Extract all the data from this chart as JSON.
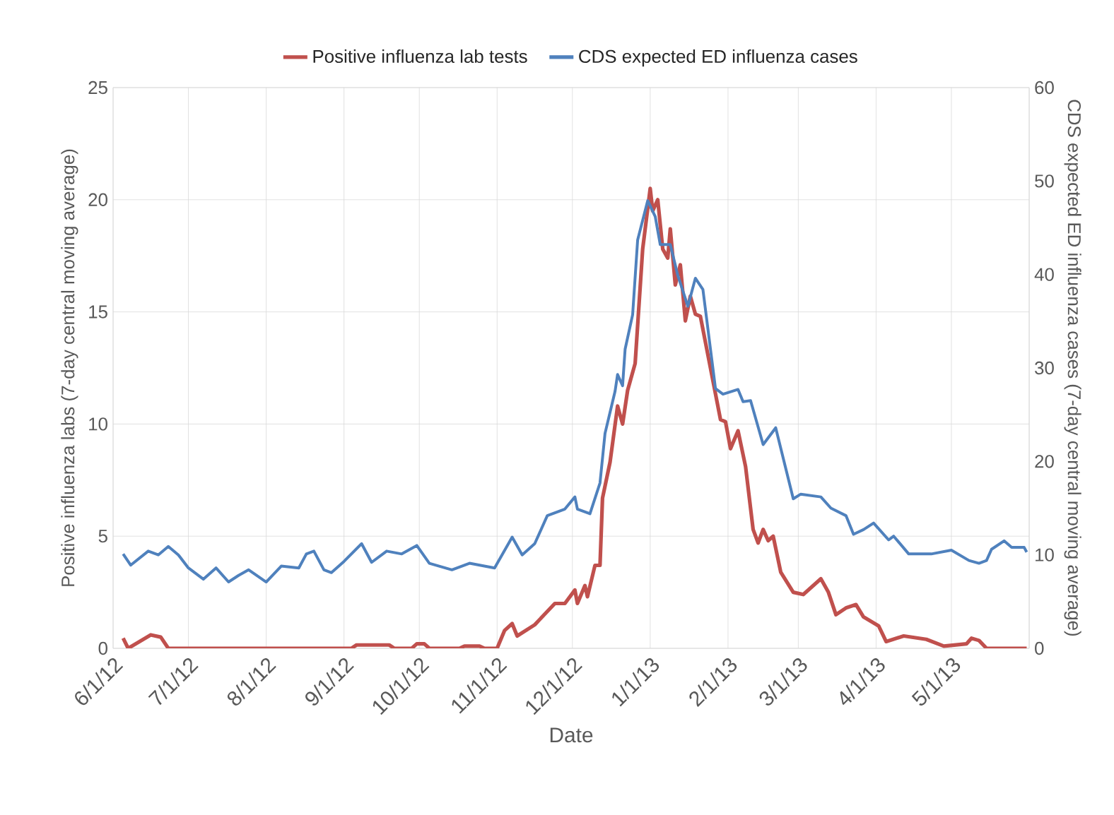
{
  "chart_data": {
    "type": "line",
    "xlabel": "Date",
    "ylabel": "Positive influenza labs (7-day central moving average)",
    "y2label": "CDS expected ED influenza cases (7-day central moving average)",
    "xlim": [
      "2012-06-01",
      "2013-06-01"
    ],
    "xticks": [
      {
        "value": "2012-06-01",
        "label": "6/1/12"
      },
      {
        "value": "2012-07-01",
        "label": "7/1/12"
      },
      {
        "value": "2012-08-01",
        "label": "8/1/12"
      },
      {
        "value": "2012-09-01",
        "label": "9/1/12"
      },
      {
        "value": "2012-10-01",
        "label": "10/1/12"
      },
      {
        "value": "2012-11-01",
        "label": "11/1/12"
      },
      {
        "value": "2012-12-01",
        "label": "12/1/12"
      },
      {
        "value": "2013-01-01",
        "label": "1/1/13"
      },
      {
        "value": "2013-02-01",
        "label": "2/1/13"
      },
      {
        "value": "2013-03-01",
        "label": "3/1/13"
      },
      {
        "value": "2013-04-01",
        "label": "4/1/13"
      },
      {
        "value": "2013-05-01",
        "label": "5/1/13"
      },
      {
        "value": "2013-06-01",
        "label": null
      }
    ],
    "ylim": [
      0,
      25
    ],
    "yticks": [
      0,
      5,
      10,
      15,
      20,
      25
    ],
    "y2lim": [
      0,
      60
    ],
    "y2ticks": [
      0,
      10,
      20,
      30,
      40,
      50,
      60
    ],
    "grid": true,
    "legend": "top",
    "series": [
      {
        "name": "Positive influenza lab tests",
        "color": "#c0504d",
        "x": [
          "2012-06-05",
          "2012-06-07",
          "2012-06-16",
          "2012-06-20",
          "2012-06-23",
          "2012-09-04",
          "2012-09-06",
          "2012-09-19",
          "2012-09-21",
          "2012-09-28",
          "2012-09-30",
          "2012-10-03",
          "2012-10-05",
          "2012-10-17",
          "2012-10-19",
          "2012-10-25",
          "2012-10-27",
          "2012-11-01",
          "2012-11-04",
          "2012-11-07",
          "2012-11-09",
          "2012-11-16",
          "2012-11-24",
          "2012-11-28",
          "2012-12-02",
          "2012-12-03",
          "2012-12-06",
          "2012-12-07",
          "2012-12-10",
          "2012-12-12",
          "2012-12-13",
          "2012-12-16",
          "2012-12-19",
          "2012-12-21",
          "2012-12-23",
          "2012-12-26",
          "2012-12-29",
          "2013-01-01",
          "2013-01-02",
          "2013-01-04",
          "2013-01-06",
          "2013-01-08",
          "2013-01-09",
          "2013-01-11",
          "2013-01-13",
          "2013-01-15",
          "2013-01-17",
          "2013-01-19",
          "2013-01-21",
          "2013-01-29",
          "2013-01-31",
          "2013-02-02",
          "2013-02-05",
          "2013-02-08",
          "2013-02-11",
          "2013-02-13",
          "2013-02-15",
          "2013-02-17",
          "2013-02-19",
          "2013-02-22",
          "2013-02-27",
          "2013-03-03",
          "2013-03-10",
          "2013-03-13",
          "2013-03-16",
          "2013-03-20",
          "2013-03-24",
          "2013-03-27",
          "2013-04-02",
          "2013-04-05",
          "2013-04-12",
          "2013-04-21",
          "2013-04-28",
          "2013-05-07",
          "2013-05-09",
          "2013-05-12",
          "2013-05-15",
          "2013-05-31"
        ],
        "values": [
          0.45,
          0,
          0.6,
          0.5,
          0,
          0,
          0.15,
          0.15,
          0,
          0,
          0.2,
          0.2,
          0,
          0,
          0.1,
          0.1,
          0,
          0,
          0.8,
          1.1,
          0.55,
          1.05,
          2.0,
          2.0,
          2.6,
          2.0,
          2.8,
          2.3,
          3.7,
          3.7,
          6.7,
          8.3,
          10.8,
          10.0,
          11.5,
          12.7,
          17.8,
          20.5,
          19.5,
          20.0,
          17.8,
          17.4,
          18.7,
          16.2,
          17.1,
          14.6,
          15.7,
          14.9,
          14.8,
          10.2,
          10.1,
          8.9,
          9.7,
          8.1,
          5.3,
          4.7,
          5.3,
          4.8,
          5.0,
          3.4,
          2.5,
          2.4,
          3.1,
          2.5,
          1.5,
          1.8,
          1.95,
          1.4,
          1.0,
          0.3,
          0.55,
          0.4,
          0.1,
          0.2,
          0.45,
          0.35,
          0,
          0
        ]
      },
      {
        "name": "CDS expected ED influenza cases",
        "color": "#4f81bd",
        "axis": "y2",
        "x": [
          "2012-06-05",
          "2012-06-08",
          "2012-06-15",
          "2012-06-19",
          "2012-06-23",
          "2012-06-27",
          "2012-07-01",
          "2012-07-07",
          "2012-07-12",
          "2012-07-17",
          "2012-07-21",
          "2012-07-25",
          "2012-08-01",
          "2012-08-07",
          "2012-08-14",
          "2012-08-17",
          "2012-08-20",
          "2012-08-24",
          "2012-08-27",
          "2012-09-01",
          "2012-09-08",
          "2012-09-12",
          "2012-09-18",
          "2012-09-24",
          "2012-09-30",
          "2012-10-05",
          "2012-10-14",
          "2012-10-21",
          "2012-10-31",
          "2012-11-07",
          "2012-11-11",
          "2012-11-16",
          "2012-11-21",
          "2012-11-28",
          "2012-12-02",
          "2012-12-03",
          "2012-12-08",
          "2012-12-12",
          "2012-12-14",
          "2012-12-18",
          "2012-12-19",
          "2012-12-21",
          "2012-12-22",
          "2012-12-25",
          "2012-12-27",
          "2012-12-31",
          "2013-01-03",
          "2013-01-05",
          "2013-01-09",
          "2013-01-12",
          "2013-01-16",
          "2013-01-19",
          "2013-01-22",
          "2013-01-27",
          "2013-01-30",
          "2013-02-05",
          "2013-02-07",
          "2013-02-10",
          "2013-02-15",
          "2013-02-20",
          "2013-02-27",
          "2013-03-02",
          "2013-03-10",
          "2013-03-14",
          "2013-03-20",
          "2013-03-23",
          "2013-03-27",
          "2013-03-31",
          "2013-04-06",
          "2013-04-08",
          "2013-04-14",
          "2013-04-23",
          "2013-05-01",
          "2013-05-08",
          "2013-05-12",
          "2013-05-15",
          "2013-05-17",
          "2013-05-22",
          "2013-05-25",
          "2013-05-30",
          "2013-05-31"
        ],
        "values": [
          10.1,
          8.9,
          10.4,
          10.0,
          10.9,
          10.0,
          8.6,
          7.4,
          8.6,
          7.1,
          7.8,
          8.4,
          7.1,
          8.8,
          8.6,
          10.1,
          10.4,
          8.4,
          8.1,
          9.3,
          11.2,
          9.2,
          10.4,
          10.1,
          11.0,
          9.1,
          8.4,
          9.1,
          8.6,
          11.9,
          10.0,
          11.2,
          14.2,
          14.9,
          16.2,
          14.9,
          14.4,
          17.7,
          23.0,
          27.5,
          29.3,
          28.1,
          32.0,
          35.7,
          43.7,
          47.9,
          46.2,
          43.2,
          43.2,
          39.9,
          36.6,
          39.6,
          38.4,
          27.8,
          27.2,
          27.7,
          26.4,
          26.5,
          21.8,
          23.6,
          16.0,
          16.5,
          16.2,
          15.0,
          14.2,
          12.2,
          12.7,
          13.4,
          11.6,
          12.0,
          10.1,
          10.1,
          10.5,
          9.4,
          9.1,
          9.4,
          10.6,
          11.5,
          10.8,
          10.8,
          10.3
        ]
      }
    ]
  }
}
